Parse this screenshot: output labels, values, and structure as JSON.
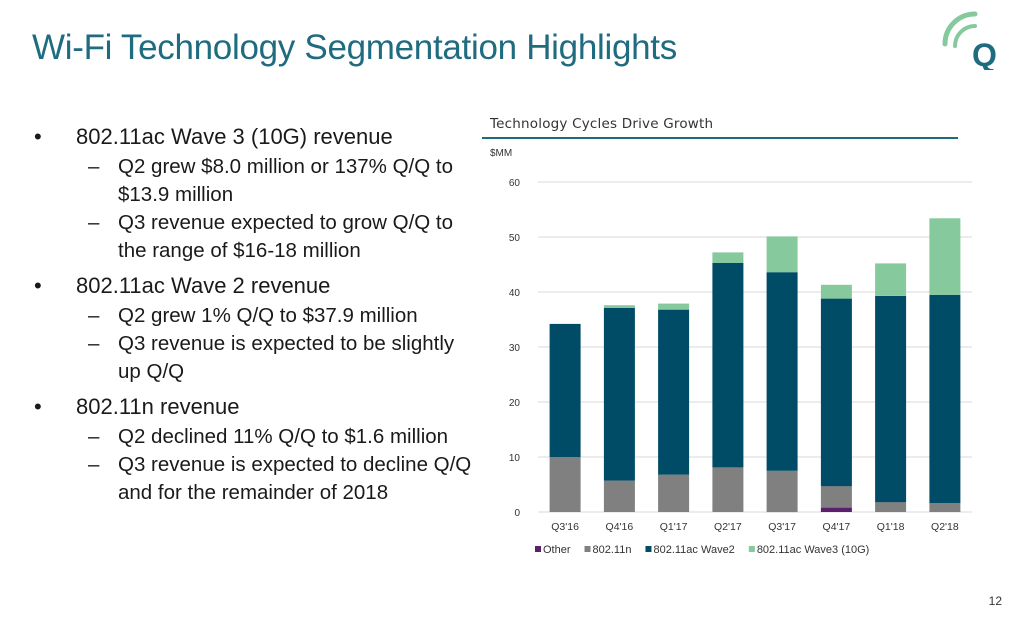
{
  "slide": {
    "title": "Wi-Fi Technology Segmentation Highlights",
    "page_number": "12"
  },
  "bullets": [
    {
      "text": "802.11ac Wave 3 (10G) revenue",
      "sub": [
        "Q2 grew $8.0 million or 137% Q/Q to $13.9 million",
        "Q3 revenue expected to grow Q/Q to the range of $16-18 million"
      ]
    },
    {
      "text": "802.11ac Wave 2 revenue",
      "sub": [
        "Q2 grew 1% Q/Q to $37.9 million",
        "Q3 revenue is expected to be slightly up Q/Q"
      ]
    },
    {
      "text": "802.11n revenue",
      "sub": [
        "Q2 declined 11% Q/Q to $1.6 million",
        "Q3 revenue is expected to decline Q/Q and for the remainder of 2018"
      ]
    }
  ],
  "chart_data": {
    "type": "bar",
    "stacked": true,
    "title": "Technology Cycles Drive Growth",
    "ylabel": "$MM",
    "ylim": [
      0,
      60
    ],
    "yticks": [
      0,
      10,
      20,
      30,
      40,
      50,
      60
    ],
    "grid": true,
    "legend_position": "bottom",
    "categories": [
      "Q3'16",
      "Q4'16",
      "Q1'17",
      "Q2'17",
      "Q3'17",
      "Q4'17",
      "Q1'18",
      "Q2'18"
    ],
    "series": [
      {
        "name": "Other",
        "color": "#5b1f6e",
        "values": [
          0,
          0,
          0,
          0,
          0,
          0.8,
          0,
          0
        ]
      },
      {
        "name": "802.11n",
        "color": "#808080",
        "values": [
          10.0,
          5.7,
          6.8,
          8.1,
          7.5,
          3.9,
          1.8,
          1.6
        ]
      },
      {
        "name": "802.11ac Wave2",
        "color": "#004c66",
        "values": [
          24.2,
          31.4,
          30.0,
          37.2,
          36.1,
          34.1,
          37.5,
          37.9
        ]
      },
      {
        "name": "802.11ac Wave3 (10G)",
        "color": "#86c99d",
        "values": [
          0,
          0.5,
          1.1,
          1.9,
          6.5,
          2.5,
          5.9,
          13.9
        ]
      }
    ]
  }
}
